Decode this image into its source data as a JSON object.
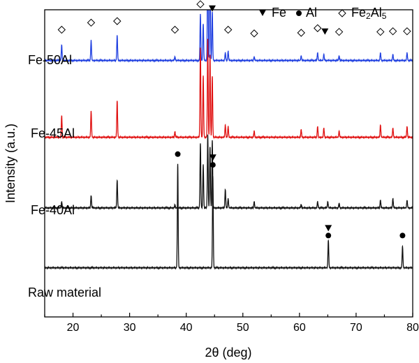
{
  "chart_data": {
    "type": "line",
    "title": "",
    "xlabel": "2θ (deg)",
    "ylabel": "Intensity (a.u.)",
    "xlim": [
      15,
      80
    ],
    "x_ticks": [
      20,
      30,
      40,
      50,
      60,
      70,
      80
    ],
    "grid": false,
    "legend_placement": "top-right",
    "legend": [
      {
        "symbol": "filled-triangle-down",
        "label": "Fe"
      },
      {
        "symbol": "filled-circle",
        "label": "Al"
      },
      {
        "symbol": "open-diamond",
        "label": "Fe2Al5"
      }
    ],
    "series": [
      {
        "name": "Fe-50Al",
        "color": "#1f3fe0",
        "baseline": 0.835,
        "peaks": [
          [
            18.0,
            0.05
          ],
          [
            23.2,
            0.065
          ],
          [
            27.8,
            0.082
          ],
          [
            38.0,
            0.012
          ],
          [
            42.5,
            0.15
          ],
          [
            43.0,
            0.12
          ],
          [
            43.8,
            0.38
          ],
          [
            44.2,
            0.3
          ],
          [
            44.6,
            0.16
          ],
          [
            46.9,
            0.025
          ],
          [
            47.4,
            0.03
          ],
          [
            52.0,
            0.012
          ],
          [
            60.3,
            0.015
          ],
          [
            63.2,
            0.025
          ],
          [
            64.3,
            0.02
          ],
          [
            67.0,
            0.015
          ],
          [
            74.3,
            0.025
          ],
          [
            76.5,
            0.02
          ],
          [
            79.0,
            0.025
          ]
        ]
      },
      {
        "name": "Fe-45Al",
        "color": "#e01010",
        "baseline": 0.585,
        "peaks": [
          [
            18.0,
            0.07
          ],
          [
            23.2,
            0.085
          ],
          [
            27.8,
            0.12
          ],
          [
            38.0,
            0.018
          ],
          [
            42.5,
            0.29
          ],
          [
            43.0,
            0.2
          ],
          [
            43.8,
            0.32
          ],
          [
            44.2,
            0.27
          ],
          [
            44.6,
            0.2
          ],
          [
            46.9,
            0.04
          ],
          [
            47.4,
            0.035
          ],
          [
            52.0,
            0.02
          ],
          [
            60.3,
            0.025
          ],
          [
            63.2,
            0.035
          ],
          [
            64.3,
            0.03
          ],
          [
            67.0,
            0.02
          ],
          [
            74.3,
            0.04
          ],
          [
            76.5,
            0.03
          ],
          [
            79.0,
            0.035
          ]
        ]
      },
      {
        "name": "Fe-40Al",
        "color": "#111111",
        "baseline": 0.355,
        "peaks": [
          [
            18.0,
            0.02
          ],
          [
            23.2,
            0.04
          ],
          [
            27.8,
            0.09
          ],
          [
            38.0,
            0.01
          ],
          [
            42.5,
            0.21
          ],
          [
            43.0,
            0.14
          ],
          [
            43.8,
            0.24
          ],
          [
            44.2,
            0.2
          ],
          [
            44.6,
            0.22
          ],
          [
            46.9,
            0.06
          ],
          [
            47.4,
            0.03
          ],
          [
            52.0,
            0.02
          ],
          [
            60.3,
            0.01
          ],
          [
            63.2,
            0.02
          ],
          [
            65.0,
            0.02
          ],
          [
            67.0,
            0.015
          ],
          [
            74.3,
            0.025
          ],
          [
            76.5,
            0.03
          ],
          [
            79.0,
            0.025
          ]
        ]
      },
      {
        "name": "Raw material",
        "color": "#111111",
        "baseline": 0.16,
        "peaks": [
          [
            38.5,
            0.34
          ],
          [
            44.7,
            0.3
          ],
          [
            65.1,
            0.09
          ],
          [
            78.2,
            0.07
          ]
        ]
      }
    ],
    "annotations": [
      {
        "marker": "diamond",
        "x": 18.0,
        "y": 0.935
      },
      {
        "marker": "diamond",
        "x": 23.2,
        "y": 0.958
      },
      {
        "marker": "diamond",
        "x": 27.8,
        "y": 0.963
      },
      {
        "marker": "diamond",
        "x": 38.0,
        "y": 0.935
      },
      {
        "marker": "diamond",
        "x": 42.5,
        "y": 1.018
      },
      {
        "marker": "diamond",
        "x": 43.8,
        "y": 1.252
      },
      {
        "marker": "triangle",
        "x": 44.6,
        "y": 1.005
      },
      {
        "marker": "diamond",
        "x": 47.4,
        "y": 0.935
      },
      {
        "marker": "diamond",
        "x": 52.0,
        "y": 0.923
      },
      {
        "marker": "diamond",
        "x": 60.3,
        "y": 0.925
      },
      {
        "marker": "diamond",
        "x": 63.2,
        "y": 0.94
      },
      {
        "marker": "triangle",
        "x": 64.5,
        "y": 0.93
      },
      {
        "marker": "diamond",
        "x": 67.0,
        "y": 0.928
      },
      {
        "marker": "diamond",
        "x": 74.3,
        "y": 0.928
      },
      {
        "marker": "diamond",
        "x": 76.5,
        "y": 0.93
      },
      {
        "marker": "diamond",
        "x": 79.0,
        "y": 0.93
      },
      {
        "marker": "circle",
        "x": 38.5,
        "y": 0.53
      },
      {
        "marker": "triangle",
        "x": 44.7,
        "y": 0.52
      },
      {
        "marker": "circle",
        "x": 44.7,
        "y": 0.495
      },
      {
        "marker": "triangle",
        "x": 65.1,
        "y": 0.29
      },
      {
        "marker": "circle",
        "x": 65.1,
        "y": 0.265
      },
      {
        "marker": "circle",
        "x": 78.2,
        "y": 0.265
      }
    ]
  }
}
